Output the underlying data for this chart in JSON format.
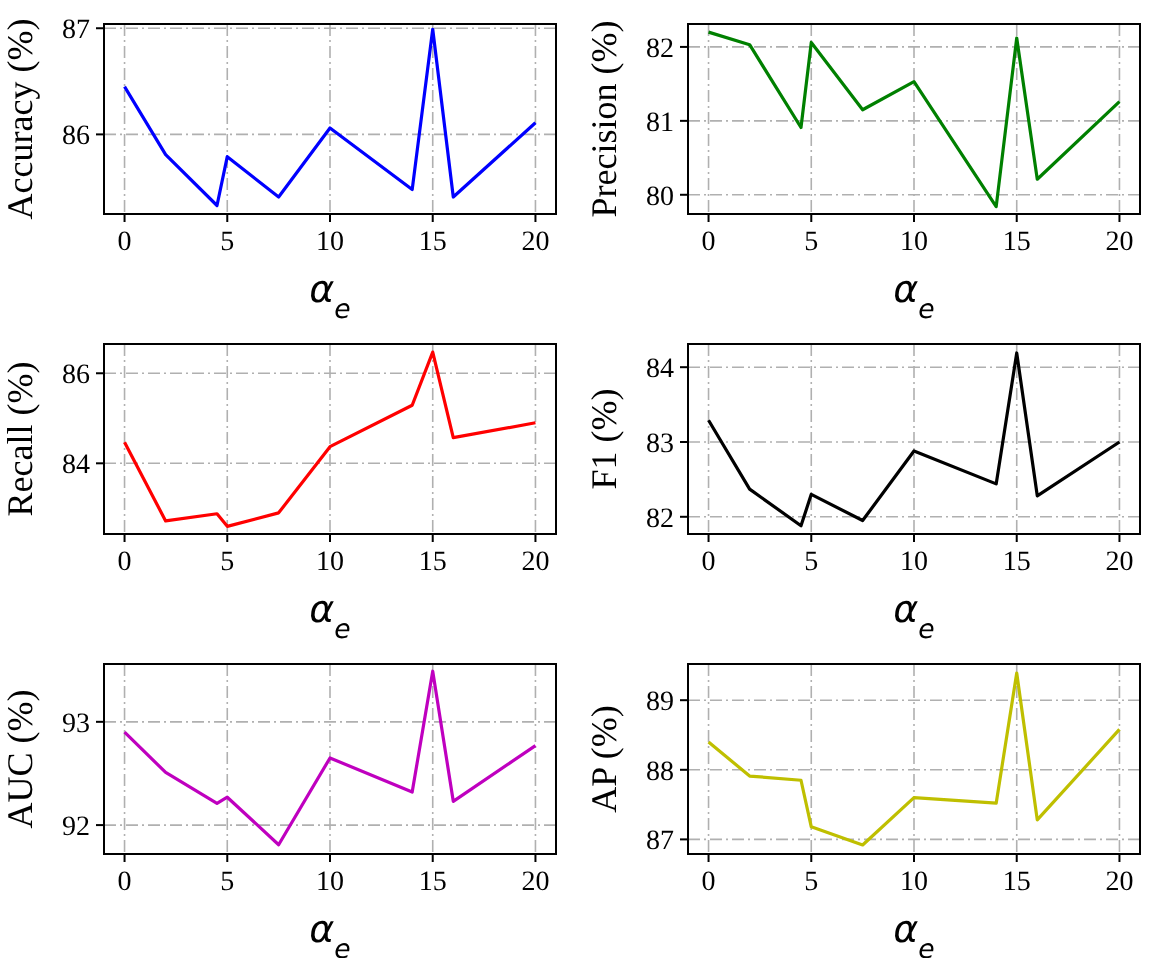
{
  "chart_data": [
    {
      "type": "line",
      "xlabel": "α$_{e}$",
      "ylabel": "Accuracy (%)",
      "x": [
        0,
        2,
        4.5,
        5,
        7.5,
        10,
        14,
        15,
        16,
        20
      ],
      "xlim": [
        -1,
        21
      ],
      "xticks": [
        0,
        5,
        10,
        15,
        20
      ],
      "ylim": [
        85.25,
        87.04
      ],
      "yticks": [
        86,
        87
      ],
      "grid": true,
      "series": [
        {
          "color": "#0000ff",
          "values": [
            86.45,
            85.81,
            85.33,
            85.79,
            85.41,
            86.06,
            85.48,
            86.99,
            85.41,
            86.11
          ]
        }
      ]
    },
    {
      "type": "line",
      "xlabel": "α$_{e}$",
      "ylabel": "Precision (%)",
      "x": [
        0,
        2,
        4.5,
        5,
        7.5,
        10,
        14,
        15,
        16,
        20
      ],
      "xlim": [
        -1,
        21
      ],
      "xticks": [
        0,
        5,
        10,
        15,
        20
      ],
      "ylim": [
        79.74,
        82.31
      ],
      "yticks": [
        80,
        81,
        82
      ],
      "grid": true,
      "series": [
        {
          "color": "#008000",
          "values": [
            82.2,
            82.03,
            80.91,
            82.06,
            81.15,
            81.53,
            79.84,
            82.12,
            80.21,
            81.26
          ]
        }
      ]
    },
    {
      "type": "line",
      "xlabel": "α$_{e}$",
      "ylabel": "Recall (%)",
      "x": [
        0,
        2,
        4.5,
        5,
        7.5,
        10,
        14,
        15,
        16,
        20
      ],
      "xlim": [
        -1,
        21
      ],
      "xticks": [
        0,
        5,
        10,
        15,
        20
      ],
      "ylim": [
        82.43,
        86.65
      ],
      "yticks": [
        84,
        86
      ],
      "grid": true,
      "series": [
        {
          "color": "#ff0000",
          "values": [
            84.47,
            82.72,
            82.88,
            82.6,
            82.9,
            84.37,
            85.29,
            86.47,
            84.57,
            84.9
          ]
        }
      ]
    },
    {
      "type": "line",
      "xlabel": "α$_{e}$",
      "ylabel": "F1 (%)",
      "x": [
        0,
        2,
        4.5,
        5,
        7.5,
        10,
        14,
        15,
        16,
        20
      ],
      "xlim": [
        -1,
        21
      ],
      "xticks": [
        0,
        5,
        10,
        15,
        20
      ],
      "ylim": [
        81.77,
        84.31
      ],
      "yticks": [
        82,
        83,
        84
      ],
      "grid": true,
      "series": [
        {
          "color": "#000000",
          "values": [
            83.29,
            82.37,
            81.88,
            82.3,
            81.95,
            82.88,
            82.44,
            84.19,
            82.28,
            83.0
          ]
        }
      ]
    },
    {
      "type": "line",
      "xlabel": "α$_{e}$",
      "ylabel": "AUC (%)",
      "x": [
        0,
        2,
        4.5,
        5,
        7.5,
        10,
        14,
        15,
        16,
        20
      ],
      "xlim": [
        -1,
        21
      ],
      "xticks": [
        0,
        5,
        10,
        15,
        20
      ],
      "ylim": [
        91.72,
        93.56
      ],
      "yticks": [
        92,
        93
      ],
      "grid": true,
      "series": [
        {
          "color": "#bf00bf",
          "values": [
            92.9,
            92.51,
            92.21,
            92.27,
            91.81,
            92.65,
            92.32,
            93.49,
            92.23,
            92.77
          ]
        }
      ]
    },
    {
      "type": "line",
      "xlabel": "α$_{e}$",
      "ylabel": "AP (%)",
      "x": [
        0,
        2,
        4.5,
        5,
        7.5,
        10,
        14,
        15,
        16,
        20
      ],
      "xlim": [
        -1,
        21
      ],
      "xticks": [
        0,
        5,
        10,
        15,
        20
      ],
      "ylim": [
        86.79,
        89.52
      ],
      "yticks": [
        87,
        88,
        89
      ],
      "grid": true,
      "series": [
        {
          "color": "#bfbf00",
          "values": [
            88.4,
            87.91,
            87.85,
            87.18,
            86.92,
            87.6,
            87.52,
            89.39,
            87.28,
            88.58
          ]
        }
      ]
    }
  ]
}
